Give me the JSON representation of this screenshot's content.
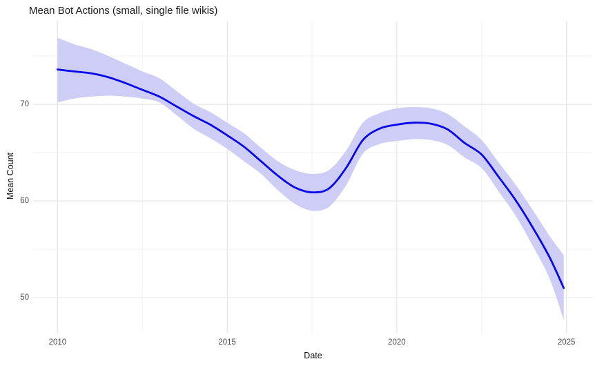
{
  "title": "Mean Bot Actions (small, single file wikis)",
  "styles": {
    "line_color": "#0707e8",
    "ribbon_fill": "#cdcdf6",
    "grid_major_color": "#e6e6e6",
    "grid_minor_color": "#f1f1f1",
    "background": "#ffffff",
    "title_color": "#1a1a1a",
    "axis_title_color": "#111111",
    "tick_label_color": "#4d4d4d"
  },
  "chart_data": {
    "type": "line",
    "title": "Mean Bot Actions (small, single file wikis)",
    "xlabel": "Date",
    "ylabel": "Mean Count",
    "grid": "major+minor",
    "legend": "none",
    "x": [
      2010.0,
      2010.5,
      2011.0,
      2011.5,
      2012.0,
      2012.5,
      2013.0,
      2013.5,
      2014.0,
      2014.5,
      2015.0,
      2015.5,
      2016.0,
      2016.5,
      2017.0,
      2017.5,
      2018.0,
      2018.5,
      2019.0,
      2019.5,
      2020.0,
      2020.5,
      2021.0,
      2021.5,
      2022.0,
      2022.5,
      2023.0,
      2023.5,
      2024.0,
      2024.5,
      2024.92
    ],
    "series": [
      {
        "name": "mean_count_smooth",
        "style": "line",
        "color_hex": "#0707e8",
        "values": [
          73.6,
          73.4,
          73.2,
          72.8,
          72.2,
          71.5,
          70.8,
          69.8,
          68.8,
          67.9,
          66.8,
          65.6,
          64.1,
          62.6,
          61.4,
          60.9,
          61.3,
          63.4,
          66.3,
          67.5,
          67.9,
          68.1,
          68.0,
          67.4,
          66.0,
          64.8,
          62.5,
          60.1,
          57.3,
          54.2,
          51.0
        ]
      },
      {
        "name": "confidence_band",
        "style": "ribbon",
        "fill_hex": "#cdcdf6",
        "lower": [
          70.2,
          70.6,
          70.8,
          70.9,
          70.8,
          70.6,
          70.2,
          68.9,
          67.5,
          66.5,
          65.4,
          64.1,
          62.8,
          61.1,
          59.7,
          59.0,
          59.4,
          61.6,
          64.9,
          65.9,
          66.2,
          66.4,
          66.3,
          65.8,
          64.5,
          63.4,
          61.0,
          58.5,
          55.4,
          52.0,
          47.7
        ],
        "upper": [
          76.9,
          76.2,
          75.7,
          75.0,
          74.2,
          73.4,
          72.7,
          71.4,
          70.1,
          69.2,
          68.1,
          67.0,
          65.5,
          64.1,
          63.2,
          62.8,
          63.2,
          65.2,
          68.1,
          69.1,
          69.6,
          69.7,
          69.6,
          69.0,
          67.7,
          66.3,
          64.0,
          61.7,
          59.1,
          56.4,
          54.4
        ]
      }
    ],
    "axes": {
      "xlim": [
        2009.28,
        2025.76
      ],
      "ylim": [
        46.3,
        78.65
      ],
      "x_major_ticks": [
        2010,
        2015,
        2020,
        2025
      ],
      "x_minor_ticks": [
        2012.5,
        2017.5,
        2022.5
      ],
      "x_tick_labels": [
        "2010",
        "2015",
        "2020",
        "2025"
      ],
      "y_major_ticks": [
        70,
        60,
        50
      ],
      "y_minor_ticks": [
        75,
        65,
        55
      ],
      "y_tick_labels": [
        "70",
        "60",
        "50"
      ]
    }
  }
}
